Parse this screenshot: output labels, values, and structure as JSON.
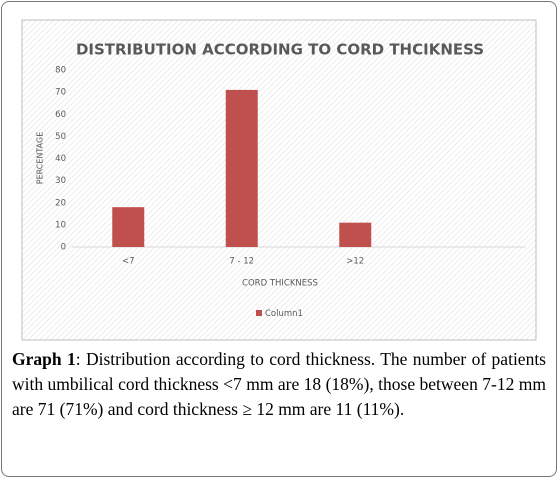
{
  "chart_data": {
    "type": "bar",
    "title": "DISTRIBUTION ACCORDING TO CORD THCIKNESS",
    "x_label": "CORD THICKNESS",
    "y_label": "PERCENTAGE",
    "categories": [
      "<7",
      "7 - 12",
      ">12",
      null
    ],
    "series": [
      {
        "name": "Column1",
        "color": "#c0504d",
        "values": [
          18,
          71,
          11,
          null
        ]
      }
    ],
    "ylim": [
      0,
      80
    ],
    "yticks": [
      0,
      10,
      20,
      30,
      40,
      50,
      60,
      70,
      80
    ],
    "grid": false,
    "legend": "bottom"
  },
  "caption": {
    "label": "Graph 1",
    "text": ": Distribution according to cord thickness. The number of patients with umbilical cord thickness <7 mm are 18 (18%), those between 7-12 mm are 71 (71%) and cord thickness ≥ 12 mm are 11 (11%)."
  }
}
